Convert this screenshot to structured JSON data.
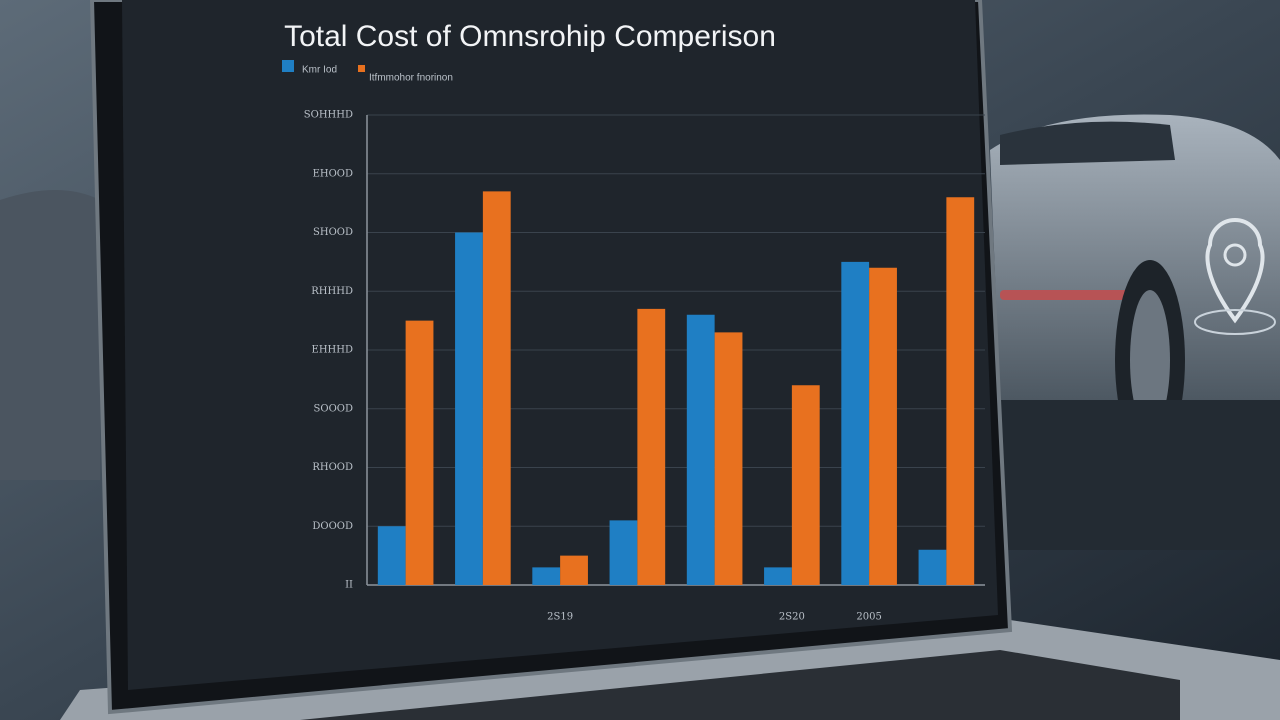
{
  "chart_data": {
    "type": "bar",
    "title": "Total Cost of Omnsrohip Comperison",
    "categories": [
      null,
      null,
      "2S19",
      null,
      null,
      "2S20",
      "2005",
      null
    ],
    "series": [
      {
        "name": "Kmr Iod",
        "color": "#1f7fc4",
        "values": [
          1.0,
          6.0,
          0.3,
          1.1,
          4.6,
          0.3,
          5.5,
          0.6
        ]
      },
      {
        "name": "Itfmmohor fnorinon",
        "color": "#e8711f",
        "values": [
          4.5,
          6.7,
          0.5,
          4.7,
          4.3,
          3.4,
          5.4,
          6.6
        ]
      }
    ],
    "ylim": [
      0,
      8
    ],
    "yticks": [
      {
        "value": 0,
        "label": "II"
      },
      {
        "value": 1,
        "label": "DOOOD"
      },
      {
        "value": 2,
        "label": "RHOOD"
      },
      {
        "value": 3,
        "label": "SOOOD"
      },
      {
        "value": 4,
        "label": "EHHHD"
      },
      {
        "value": 5,
        "label": "RHHHD"
      },
      {
        "value": 6,
        "label": "SHOOD"
      },
      {
        "value": 7,
        "label": "EHOOD"
      },
      {
        "value": 8,
        "label": "SOHHHD"
      }
    ],
    "grid": true
  }
}
